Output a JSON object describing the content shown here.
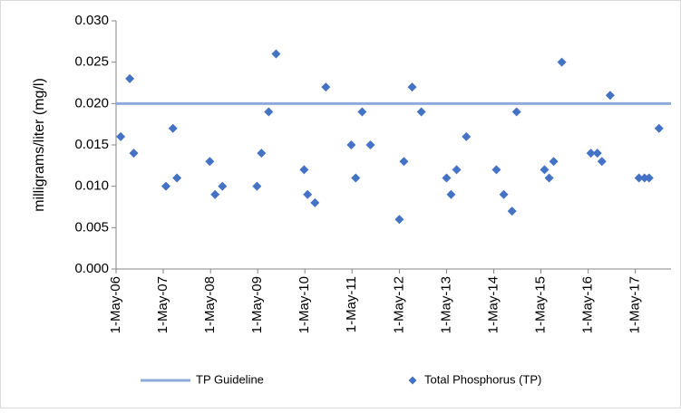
{
  "chart_data": {
    "type": "scatter",
    "y_label": "milligrams/liter (mg/l)",
    "xlim": [
      "2006-05-01",
      "2018-02-01"
    ],
    "xticks": [
      {
        "value": "2006-05-01",
        "label": "1-May-06"
      },
      {
        "value": "2007-05-01",
        "label": "1-May-07"
      },
      {
        "value": "2008-05-01",
        "label": "1-May-08"
      },
      {
        "value": "2009-05-01",
        "label": "1-May-09"
      },
      {
        "value": "2010-05-01",
        "label": "1-May-10"
      },
      {
        "value": "2011-05-01",
        "label": "1-May-11"
      },
      {
        "value": "2012-05-01",
        "label": "1-May-12"
      },
      {
        "value": "2013-05-01",
        "label": "1-May-13"
      },
      {
        "value": "2014-05-01",
        "label": "1-May-14"
      },
      {
        "value": "2015-05-01",
        "label": "1-May-15"
      },
      {
        "value": "2016-05-01",
        "label": "1-May-16"
      },
      {
        "value": "2017-05-01",
        "label": "1-May-17"
      }
    ],
    "ylim": [
      0,
      0.03
    ],
    "yticks": [
      {
        "value": 0,
        "label": "0.000"
      },
      {
        "value": 0.005,
        "label": "0.005"
      },
      {
        "value": 0.01,
        "label": "0.010"
      },
      {
        "value": 0.015,
        "label": "0.015"
      },
      {
        "value": 0.02,
        "label": "0.020"
      },
      {
        "value": 0.025,
        "label": "0.025"
      },
      {
        "value": 0.03,
        "label": "0.030"
      }
    ],
    "guideline": {
      "name": "TP Guideline",
      "value": 0.02,
      "color": "#8eaadb"
    },
    "series": [
      {
        "name": "Total Phosphorus (TP)",
        "color": "#4472c4",
        "x": [
          "2006-06-06",
          "2006-08-15",
          "2006-09-15",
          "2007-05-22",
          "2007-07-15",
          "2007-08-15",
          "2008-04-25",
          "2008-06-05",
          "2008-08-01",
          "2009-04-25",
          "2009-05-30",
          "2009-07-25",
          "2009-09-20",
          "2010-04-25",
          "2010-05-22",
          "2010-07-18",
          "2010-10-10",
          "2011-04-25",
          "2011-05-29",
          "2011-07-18",
          "2011-09-20",
          "2012-05-01",
          "2012-06-05",
          "2012-08-08",
          "2012-10-18",
          "2013-05-01",
          "2013-06-05",
          "2013-07-18",
          "2013-10-01",
          "2014-05-22",
          "2014-07-18",
          "2014-09-20",
          "2014-10-25",
          "2015-05-29",
          "2015-07-04",
          "2015-08-08",
          "2015-10-10",
          "2016-05-22",
          "2016-07-11",
          "2016-08-15",
          "2016-10-18",
          "2017-05-29",
          "2017-07-11",
          "2017-08-15",
          "2017-10-31"
        ],
        "values": [
          0.016,
          0.023,
          0.014,
          0.01,
          0.017,
          0.011,
          0.013,
          0.009,
          0.01,
          0.01,
          0.014,
          0.019,
          0.026,
          0.012,
          0.009,
          0.008,
          0.022,
          0.015,
          0.011,
          0.019,
          0.015,
          0.006,
          0.013,
          0.022,
          0.019,
          0.011,
          0.009,
          0.012,
          0.016,
          0.012,
          0.009,
          0.007,
          0.019,
          0.012,
          0.011,
          0.013,
          0.025,
          0.014,
          0.014,
          0.013,
          0.021,
          0.011,
          0.011,
          0.011,
          0.017
        ]
      }
    ],
    "legend": "bottom"
  }
}
